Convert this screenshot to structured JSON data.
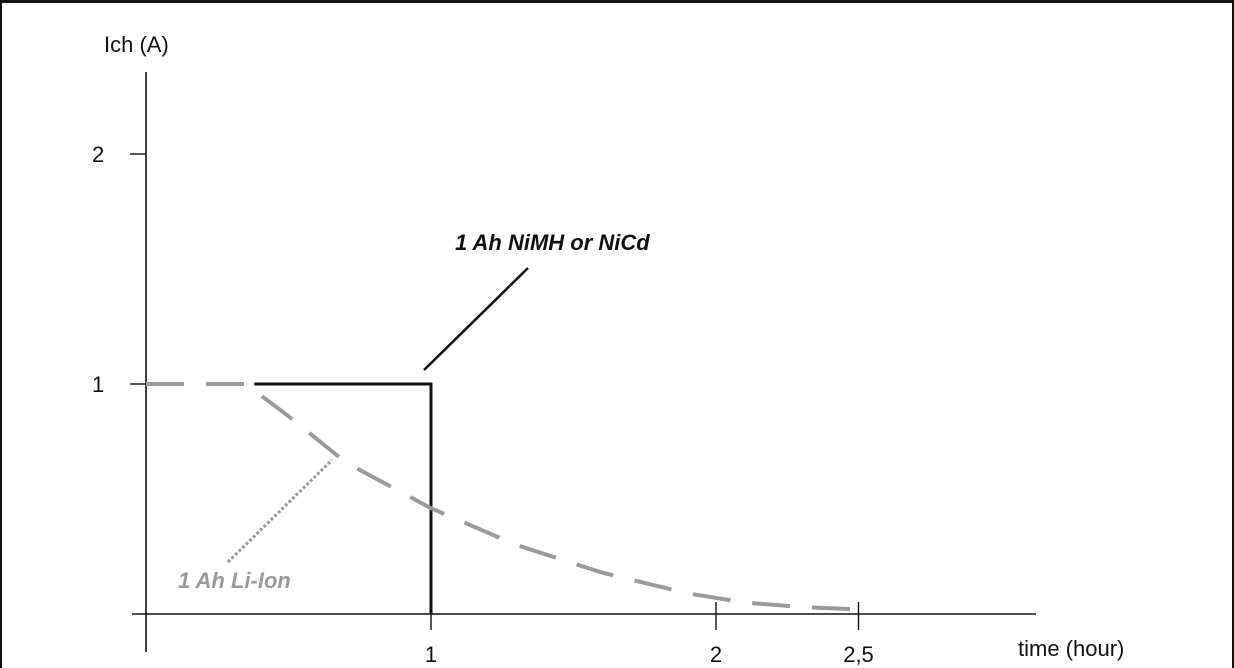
{
  "chart_data": {
    "type": "line",
    "title": "",
    "xlabel": "time (hour)",
    "ylabel": "Ich (A)",
    "xlim": [
      0,
      2.5
    ],
    "ylim": [
      0,
      2.2
    ],
    "x_ticks": [
      {
        "value": 1,
        "label": "1"
      },
      {
        "value": 2,
        "label": "2"
      },
      {
        "value": 2.5,
        "label": "2,5"
      }
    ],
    "y_ticks": [
      {
        "value": 1,
        "label": "1"
      },
      {
        "value": 2,
        "label": "2"
      }
    ],
    "grid": false,
    "legend": "none",
    "series": [
      {
        "key": "nimh",
        "color": "#111111",
        "style": "solid",
        "x": [
          0.38,
          1.0,
          1.0
        ],
        "y": [
          1.0,
          1.0,
          0.0
        ]
      },
      {
        "key": "liion",
        "color": "#9a9a9a",
        "style": "dashed",
        "x": [
          0.0,
          0.35,
          0.5,
          0.7,
          1.0,
          1.3,
          1.6,
          1.9,
          2.1,
          2.3,
          2.5
        ],
        "y": [
          1.0,
          1.0,
          0.86,
          0.66,
          0.46,
          0.3,
          0.18,
          0.09,
          0.05,
          0.03,
          0.02
        ]
      }
    ],
    "annotations": [
      {
        "text": "1 Ah NiMH or NiCd",
        "color": "#111111",
        "target_series": "nimh"
      },
      {
        "text": "1 Ah Li-Ion",
        "color": "#9a9a9a",
        "target_series": "liion"
      }
    ]
  }
}
